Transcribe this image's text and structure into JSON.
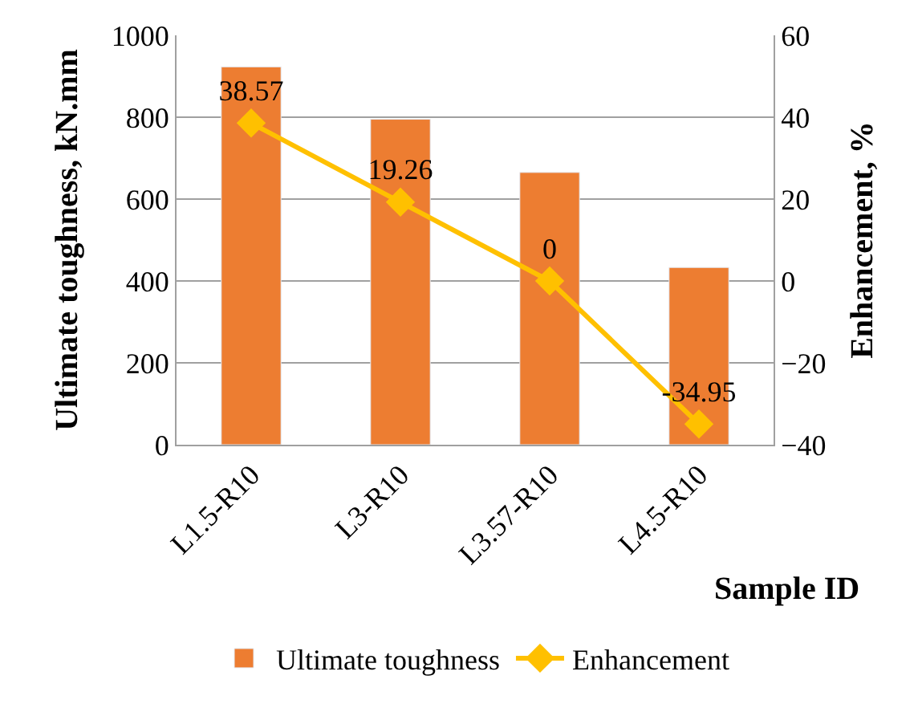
{
  "chart_data": {
    "type": "bar",
    "categories": [
      "L1.5-R10",
      "L3-R10",
      "L3.57-R10",
      "L4.5-R10"
    ],
    "xlabel": "Sample ID",
    "ylabel": "Ultimate toughness, kN.mm",
    "y2label": "Enhancement, %",
    "series": [
      {
        "name": "Ultimate toughness",
        "color": "#ed7d31",
        "values": [
          923,
          795,
          665,
          433
        ]
      },
      {
        "name": "Enhancement",
        "type": "line",
        "axis": "y2",
        "color": "#ffc000",
        "marker": "diamond",
        "values": [
          38.57,
          19.26,
          0,
          -34.95
        ],
        "value_labels": [
          "38.57",
          "19.26",
          "0",
          "-34.95"
        ]
      }
    ],
    "ylim": [
      0,
      1000
    ],
    "yticks": [
      0,
      200,
      400,
      600,
      800,
      1000
    ],
    "y2lim": [
      -40,
      60
    ],
    "y2ticks": [
      -40,
      -20,
      0,
      20,
      40,
      60
    ],
    "grid": "y",
    "legend": "bottom"
  }
}
